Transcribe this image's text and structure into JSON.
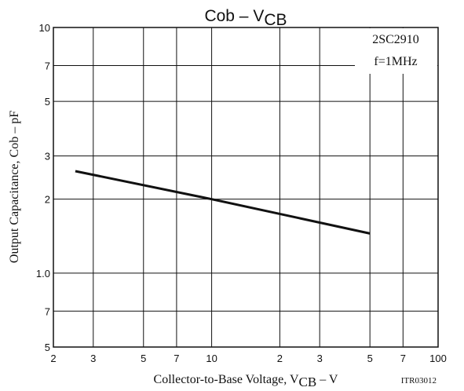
{
  "chart_data": {
    "type": "line",
    "title": [
      "Cob  –  V",
      "CB"
    ],
    "xlabel": [
      "Collector-to-Base Voltage,  V",
      "CB",
      "  –  V"
    ],
    "ylabel": "Output Capacitance,  Cob  –  pF",
    "annotations": [
      "2SC2910",
      "f=1MHz"
    ],
    "code": "ITR03012",
    "x": [
      2.5,
      10,
      50
    ],
    "series": [
      {
        "color": "#111111",
        "values": [
          2.6,
          2.0,
          1.45
        ]
      }
    ],
    "xscale": "log",
    "yscale": "log",
    "grid": true,
    "xlim": [
      2,
      100
    ],
    "xticks": [
      2,
      3,
      5,
      7,
      10,
      {
        "value": 20,
        "label": "2"
      },
      {
        "value": 30,
        "label": "3"
      },
      {
        "value": 50,
        "label": "5"
      },
      {
        "value": 70,
        "label": "7"
      },
      100
    ],
    "ylim": [
      0.5,
      10
    ],
    "yticks": [
      {
        "value": 0.5,
        "label": "5"
      },
      {
        "value": 0.7,
        "label": "7"
      },
      {
        "value": 1,
        "label": "1.0"
      },
      2,
      3,
      5,
      7,
      10
    ]
  }
}
